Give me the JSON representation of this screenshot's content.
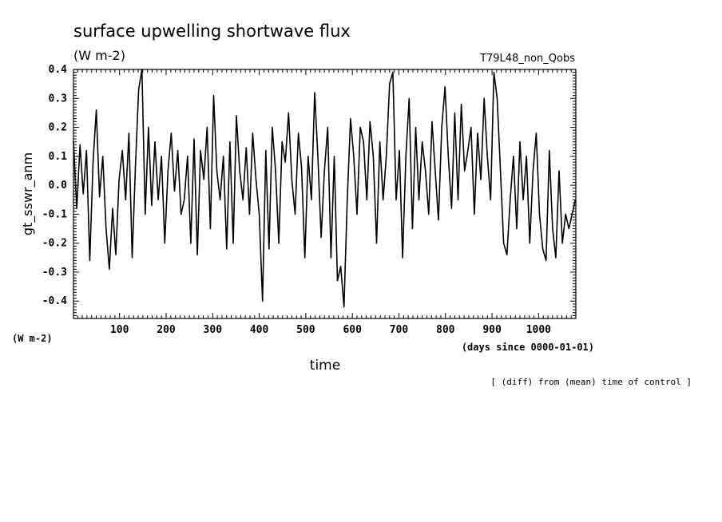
{
  "header": {
    "title": "surface upwelling shortwave flux",
    "units": "(W m-2)",
    "run_label": "T79L48_non_Qobs"
  },
  "footer": {
    "note": "[ (diff) from (mean) time of control ]"
  },
  "chart_data": {
    "type": "line",
    "ylabel": "gt_sswr_anm",
    "yunits": "(W m-2)",
    "xlabel": "time",
    "xunits": "(days since 0000-01-01)",
    "xlim": [
      1,
      1080
    ],
    "ylim": [
      -0.46,
      0.4
    ],
    "x_ticks": [
      100,
      200,
      300,
      400,
      500,
      600,
      700,
      800,
      900,
      1000
    ],
    "y_ticks": [
      -0.4,
      -0.3,
      -0.2,
      -0.1,
      0.0,
      0.1,
      0.2,
      0.3,
      0.4
    ],
    "y_tick_labels": [
      "-0.4",
      "-0.3",
      "-0.2",
      "-0.1",
      "0.0",
      "0.1",
      "0.2",
      "0.3",
      "0.4"
    ],
    "grid": false,
    "color": "#000000",
    "series": [
      {
        "x": [
          1,
          8,
          15,
          22,
          29,
          36,
          43,
          50,
          57,
          64,
          71,
          78,
          85,
          92,
          99,
          106,
          113,
          120,
          127,
          134,
          141,
          148,
          155,
          162,
          169,
          176,
          183,
          190,
          197,
          204,
          211,
          218,
          225,
          232,
          239,
          246,
          253,
          260,
          267,
          274,
          281,
          288,
          295,
          302,
          309,
          316,
          323,
          330,
          337,
          344,
          351,
          358,
          365,
          372,
          379,
          386,
          393,
          400,
          407,
          414,
          421,
          428,
          435,
          442,
          449,
          456,
          463,
          470,
          477,
          484,
          491,
          498,
          505,
          512,
          519,
          526,
          533,
          540,
          547,
          554,
          561,
          568,
          575,
          582,
          589,
          596,
          603,
          610,
          617,
          624,
          631,
          638,
          645,
          652,
          659,
          666,
          673,
          680,
          687,
          694,
          701,
          708,
          715,
          722,
          729,
          736,
          743,
          750,
          757,
          764,
          771,
          778,
          785,
          792,
          799,
          806,
          813,
          820,
          827,
          834,
          841,
          848,
          855,
          862,
          869,
          876,
          883,
          890,
          897,
          904,
          911,
          918,
          925,
          932,
          939,
          946,
          953,
          960,
          967,
          974,
          981,
          988,
          995,
          1002,
          1009,
          1016,
          1023,
          1030,
          1037,
          1044,
          1051,
          1058,
          1065,
          1072,
          1079
        ],
        "y": [
          0.15,
          -0.08,
          0.14,
          -0.03,
          0.12,
          -0.26,
          0.08,
          0.26,
          -0.04,
          0.1,
          -0.15,
          -0.29,
          -0.08,
          -0.24,
          0.02,
          0.12,
          -0.05,
          0.18,
          -0.25,
          0.06,
          0.33,
          0.4,
          -0.1,
          0.2,
          -0.07,
          0.15,
          -0.05,
          0.1,
          -0.2,
          0.05,
          0.18,
          -0.02,
          0.12,
          -0.1,
          -0.05,
          0.1,
          -0.2,
          0.16,
          -0.24,
          0.12,
          0.02,
          0.2,
          -0.15,
          0.31,
          0.05,
          -0.05,
          0.1,
          -0.22,
          0.15,
          -0.2,
          0.24,
          0.05,
          -0.05,
          0.13,
          -0.1,
          0.18,
          0.02,
          -0.1,
          -0.4,
          0.12,
          -0.22,
          0.2,
          0.05,
          -0.2,
          0.15,
          0.08,
          0.25,
          0.02,
          -0.1,
          0.18,
          0.06,
          -0.25,
          0.1,
          -0.05,
          0.32,
          0.1,
          -0.18,
          0.05,
          0.2,
          -0.25,
          0.1,
          -0.33,
          -0.28,
          -0.42,
          -0.05,
          0.23,
          0.1,
          -0.1,
          0.2,
          0.15,
          -0.05,
          0.22,
          0.1,
          -0.2,
          0.15,
          -0.05,
          0.1,
          0.35,
          0.39,
          -0.05,
          0.12,
          -0.25,
          0.1,
          0.3,
          -0.15,
          0.2,
          -0.05,
          0.15,
          0.05,
          -0.1,
          0.22,
          0.05,
          -0.12,
          0.2,
          0.34,
          0.1,
          -0.08,
          0.25,
          -0.05,
          0.28,
          0.05,
          0.12,
          0.2,
          -0.1,
          0.18,
          0.02,
          0.3,
          0.1,
          -0.05,
          0.39,
          0.3,
          0.05,
          -0.2,
          -0.24,
          -0.05,
          0.1,
          -0.15,
          0.15,
          -0.05,
          0.1,
          -0.2,
          0.05,
          0.18,
          -0.1,
          -0.22,
          -0.26,
          0.12,
          -0.15,
          -0.25,
          0.05,
          -0.2,
          -0.1,
          -0.15,
          -0.1,
          -0.05
        ]
      }
    ]
  }
}
